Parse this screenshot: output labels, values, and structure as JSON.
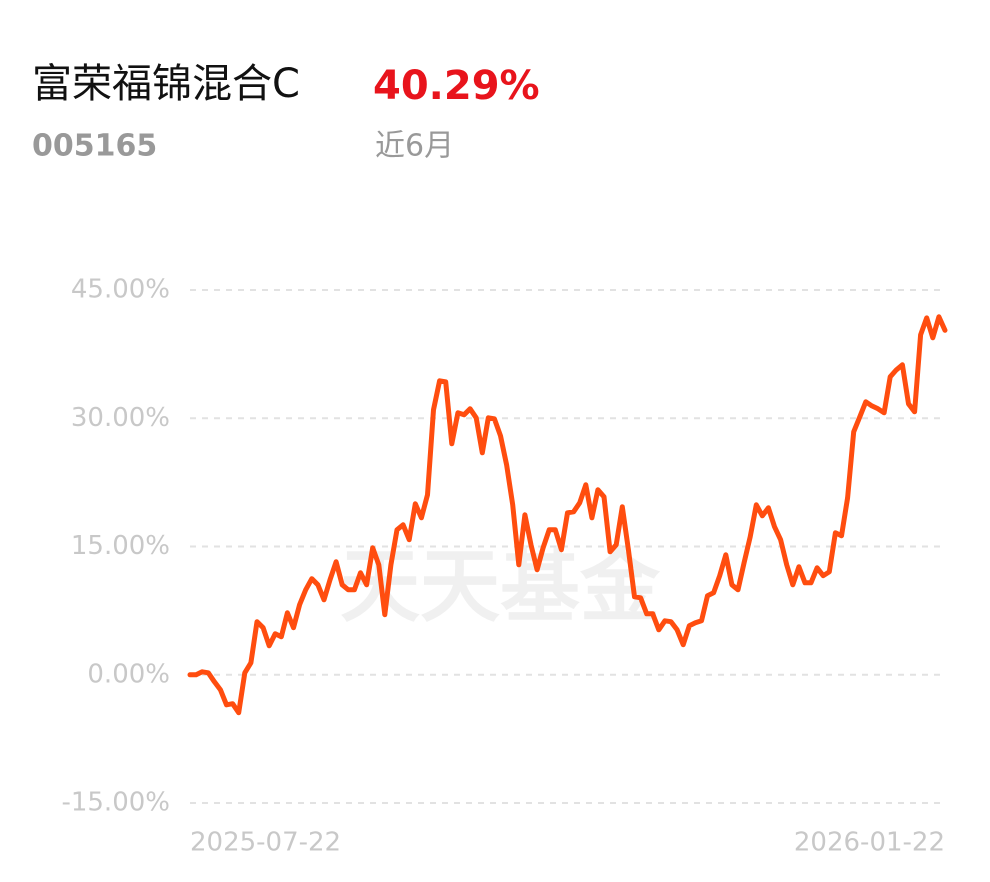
{
  "header": {
    "name": "富荣福锦混合C",
    "return": "40.29%",
    "code": "005165",
    "period": "近6月"
  },
  "chart_data": {
    "type": "line",
    "watermark": "天天基金",
    "color": "#ff4d0f",
    "categories": [
      "2025-07-22",
      null,
      null,
      null,
      null,
      null,
      null,
      null,
      null,
      null,
      null,
      null,
      null,
      null,
      null,
      null,
      null,
      null,
      null,
      null,
      null,
      null,
      null,
      null,
      null,
      null,
      null,
      null,
      null,
      null,
      null,
      null,
      null,
      null,
      null,
      null,
      null,
      null,
      null,
      null,
      null,
      null,
      null,
      null,
      null,
      null,
      null,
      null,
      null,
      null,
      null,
      null,
      null,
      null,
      null,
      null,
      null,
      null,
      null,
      null,
      null,
      null,
      null,
      null,
      null,
      null,
      null,
      null,
      null,
      null,
      null,
      null,
      null,
      null,
      null,
      null,
      null,
      null,
      null,
      null,
      null,
      null,
      null,
      null,
      null,
      null,
      null,
      null,
      null,
      null,
      null,
      null,
      null,
      null,
      null,
      null,
      null,
      null,
      null,
      null,
      null,
      null,
      null,
      null,
      null,
      null,
      null,
      null,
      null,
      null,
      null,
      null,
      null,
      null,
      null,
      null,
      null,
      null,
      null,
      null,
      null,
      null,
      null,
      null,
      "2026-01-22"
    ],
    "values": [
      0,
      0,
      0.35,
      0.23,
      -0.82,
      -1.75,
      -3.51,
      -3.39,
      -4.44,
      0.23,
      1.4,
      6.2,
      5.5,
      3.39,
      4.79,
      4.44,
      7.25,
      5.5,
      8.19,
      9.94,
      11.23,
      10.52,
      8.77,
      11.11,
      13.21,
      10.52,
      9.94,
      9.94,
      11.93,
      10.52,
      14.85,
      12.86,
      7.02,
      12.86,
      16.95,
      17.54,
      15.79,
      20.0,
      18.36,
      21.05,
      30.99,
      34.38,
      34.26,
      27.01,
      30.64,
      30.4,
      31.1,
      30.05,
      25.96,
      30.05,
      29.93,
      27.95,
      24.56,
      19.88,
      12.86,
      18.71,
      15.2,
      12.28,
      14.85,
      16.95,
      16.95,
      14.62,
      18.94,
      19.06,
      20.11,
      22.22,
      18.36,
      21.63,
      20.81,
      14.38,
      15.2,
      19.64,
      14.62,
      9.12,
      9.0,
      7.13,
      7.13,
      5.26,
      6.31,
      6.2,
      5.26,
      3.51,
      5.73,
      6.08,
      6.31,
      9.24,
      9.59,
      11.58,
      14.03,
      10.52,
      9.94,
      13.1,
      16.14,
      19.88,
      18.59,
      19.53,
      17.31,
      15.79,
      12.86,
      10.52,
      12.63,
      10.76,
      10.76,
      12.51,
      11.58,
      12.04,
      16.6,
      16.25,
      20.7,
      28.41,
      30.17,
      31.92,
      31.45,
      31.1,
      30.64,
      34.85,
      35.66,
      36.25,
      31.69,
      30.75,
      39.76,
      41.74,
      39.41,
      41.86,
      40.29
    ],
    "ylim": [
      -15,
      45
    ],
    "yticks": [
      {
        "value": -15,
        "label": "-15.00%"
      },
      {
        "value": 0,
        "label": "0.00%"
      },
      {
        "value": 15,
        "label": "15.00%"
      },
      {
        "value": 30,
        "label": "30.00%"
      },
      {
        "value": 45,
        "label": "45.00%"
      }
    ],
    "grid": true
  }
}
